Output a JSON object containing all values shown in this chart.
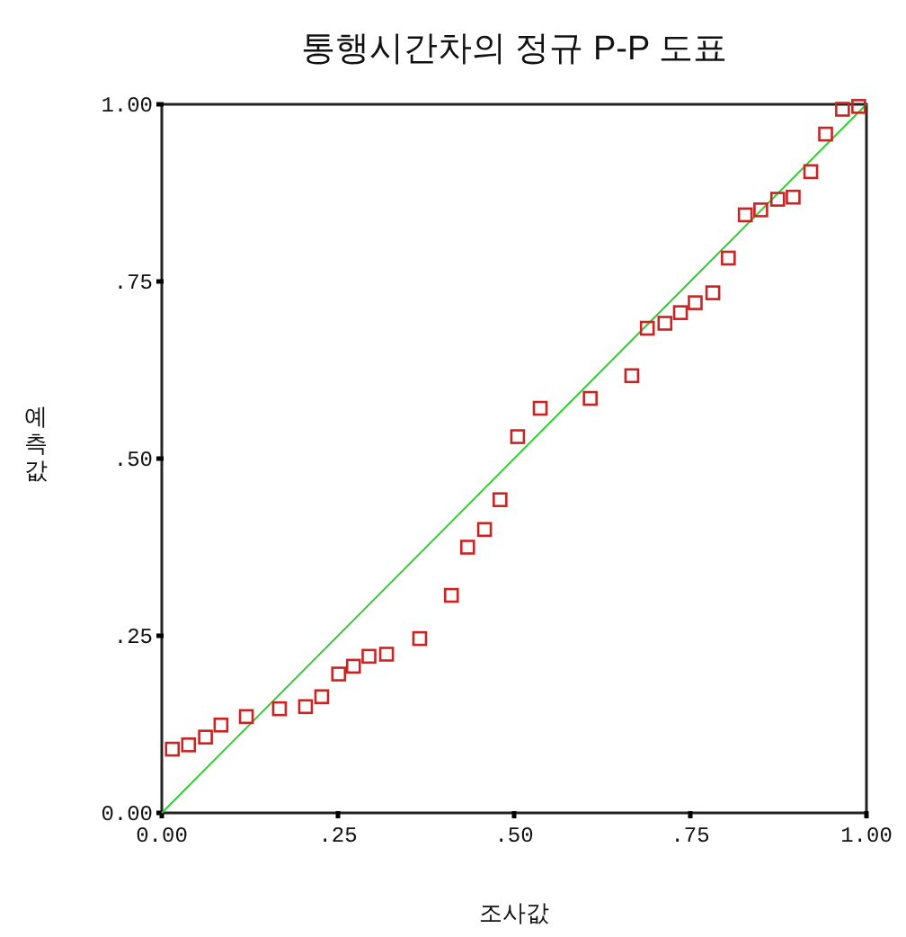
{
  "chart_data": {
    "type": "scatter",
    "title": "통행시간차의 정규 P-P 도표",
    "xlabel": "조사값",
    "ylabel": "예측값",
    "xlim": [
      0,
      1
    ],
    "ylim": [
      0,
      1
    ],
    "xticks": [
      {
        "value": 0,
        "label": "0.00"
      },
      {
        "value": 0.25,
        "label": ".25"
      },
      {
        "value": 0.5,
        "label": ".50"
      },
      {
        "value": 0.75,
        "label": ".75"
      },
      {
        "value": 1,
        "label": "1.00"
      }
    ],
    "yticks": [
      {
        "value": 0,
        "label": "0.00"
      },
      {
        "value": 0.25,
        "label": ".25"
      },
      {
        "value": 0.5,
        "label": ".50"
      },
      {
        "value": 0.75,
        "label": ".75"
      },
      {
        "value": 1,
        "label": "1.00"
      }
    ],
    "grid": false,
    "series": [
      {
        "type": "line",
        "color": "#33cc33",
        "x": [
          0,
          1
        ],
        "values": [
          0,
          1
        ],
        "line_style": "solid"
      },
      {
        "color": "#cc2222",
        "marker": "square",
        "x": [
          0.015,
          0.038,
          0.062,
          0.084,
          0.12,
          0.167,
          0.204,
          0.227,
          0.251,
          0.272,
          0.294,
          0.319,
          0.366,
          0.411,
          0.434,
          0.458,
          0.48,
          0.505,
          0.537,
          0.608,
          0.667,
          0.689,
          0.714,
          0.736,
          0.757,
          0.782,
          0.804,
          0.828,
          0.85,
          0.874,
          0.896,
          0.921,
          0.942,
          0.966,
          0.989
        ],
        "values": [
          0.09,
          0.096,
          0.107,
          0.124,
          0.136,
          0.147,
          0.15,
          0.164,
          0.196,
          0.207,
          0.221,
          0.224,
          0.246,
          0.307,
          0.375,
          0.4,
          0.442,
          0.531,
          0.571,
          0.585,
          0.617,
          0.684,
          0.691,
          0.706,
          0.72,
          0.734,
          0.783,
          0.844,
          0.851,
          0.866,
          0.869,
          0.905,
          0.958,
          0.993,
          0.997
        ]
      }
    ]
  }
}
